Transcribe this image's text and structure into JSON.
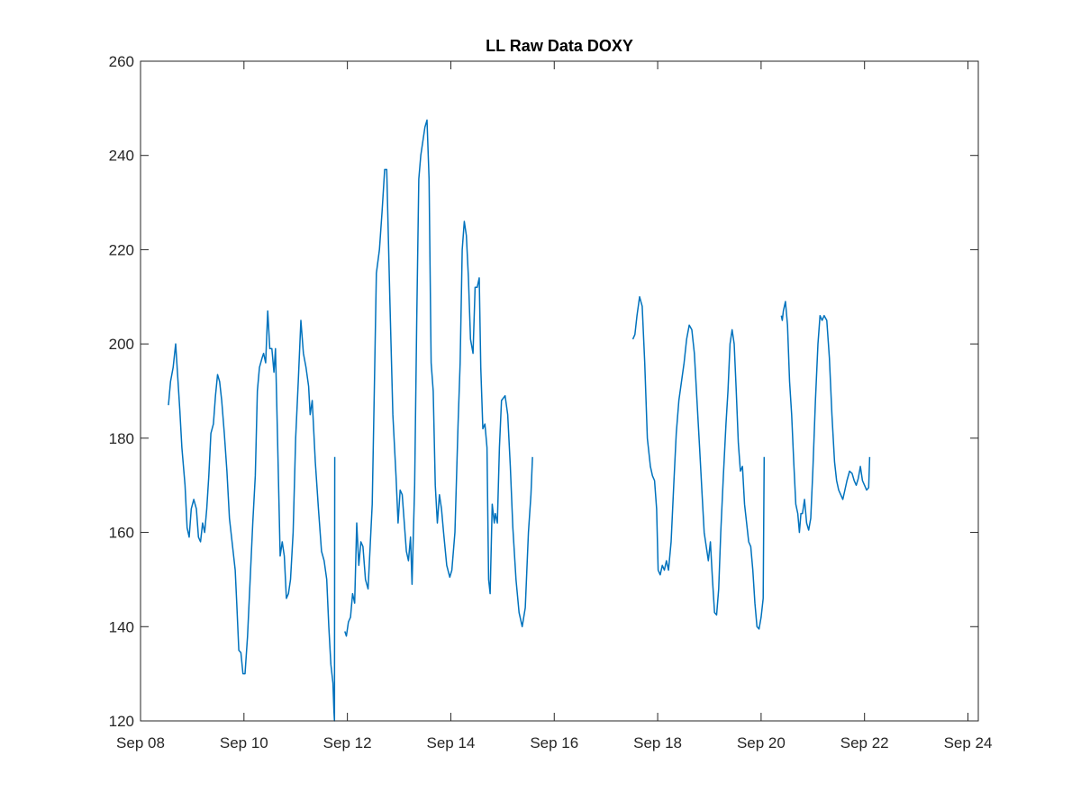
{
  "chart_data": {
    "type": "line",
    "title": "LL Raw Data DOXY",
    "xlabel": "",
    "ylabel": "",
    "x_unit": "days since Sep 08",
    "xlim": [
      0,
      16.2
    ],
    "ylim": [
      120,
      260
    ],
    "x_ticks": [
      {
        "value": 0,
        "label": "Sep 08"
      },
      {
        "value": 2,
        "label": "Sep 10"
      },
      {
        "value": 4,
        "label": "Sep 12"
      },
      {
        "value": 6,
        "label": "Sep 14"
      },
      {
        "value": 8,
        "label": "Sep 16"
      },
      {
        "value": 10,
        "label": "Sep 18"
      },
      {
        "value": 12,
        "label": "Sep 20"
      },
      {
        "value": 14,
        "label": "Sep 22"
      },
      {
        "value": 16,
        "label": "Sep 24"
      }
    ],
    "y_ticks": [
      {
        "value": 120,
        "label": "120"
      },
      {
        "value": 140,
        "label": "140"
      },
      {
        "value": 160,
        "label": "160"
      },
      {
        "value": 180,
        "label": "180"
      },
      {
        "value": 200,
        "label": "200"
      },
      {
        "value": 220,
        "label": "220"
      },
      {
        "value": 240,
        "label": "240"
      },
      {
        "value": 260,
        "label": "260"
      }
    ],
    "grid": false,
    "colors": {
      "line": "#0072BD",
      "axis": "#262626",
      "title": "#000000"
    },
    "series": [
      {
        "name": "DOXY",
        "segments": [
          [
            [
              0.54,
              187
            ],
            [
              0.58,
              192
            ],
            [
              0.63,
              195
            ],
            [
              0.68,
              200
            ],
            [
              0.72,
              193
            ],
            [
              0.76,
              186
            ],
            [
              0.8,
              178
            ],
            [
              0.86,
              170
            ],
            [
              0.9,
              161
            ],
            [
              0.94,
              159
            ],
            [
              0.98,
              165
            ],
            [
              1.03,
              167
            ],
            [
              1.08,
              165
            ],
            [
              1.12,
              159
            ],
            [
              1.16,
              158
            ],
            [
              1.2,
              162
            ],
            [
              1.24,
              160
            ],
            [
              1.28,
              165
            ],
            [
              1.32,
              172
            ],
            [
              1.36,
              181
            ],
            [
              1.41,
              183
            ],
            [
              1.45,
              189
            ],
            [
              1.49,
              193.5
            ],
            [
              1.53,
              192
            ],
            [
              1.57,
              188
            ],
            [
              1.62,
              181
            ],
            [
              1.67,
              173
            ],
            [
              1.72,
              163
            ],
            [
              1.78,
              157
            ],
            [
              1.83,
              152
            ],
            [
              1.86,
              145
            ],
            [
              1.9,
              135
            ],
            [
              1.94,
              134.5
            ],
            [
              1.98,
              130
            ],
            [
              2.02,
              130
            ],
            [
              2.07,
              138
            ],
            [
              2.12,
              150
            ],
            [
              2.17,
              162
            ],
            [
              2.22,
              172
            ],
            [
              2.26,
              190
            ],
            [
              2.3,
              195
            ],
            [
              2.35,
              197
            ],
            [
              2.38,
              198
            ],
            [
              2.42,
              196
            ],
            [
              2.46,
              207
            ],
            [
              2.5,
              199
            ],
            [
              2.54,
              199
            ],
            [
              2.58,
              194
            ],
            [
              2.61,
              199
            ],
            [
              2.65,
              180
            ],
            [
              2.7,
              155
            ],
            [
              2.74,
              158
            ],
            [
              2.78,
              155
            ],
            [
              2.82,
              146
            ],
            [
              2.86,
              147
            ],
            [
              2.9,
              150
            ],
            [
              2.95,
              160
            ],
            [
              3.0,
              180
            ],
            [
              3.05,
              192
            ],
            [
              3.1,
              205
            ],
            [
              3.15,
              198
            ],
            [
              3.2,
              195
            ],
            [
              3.25,
              191
            ],
            [
              3.28,
              185
            ],
            [
              3.32,
              188
            ],
            [
              3.38,
              175
            ],
            [
              3.44,
              165
            ],
            [
              3.5,
              156
            ],
            [
              3.55,
              154
            ],
            [
              3.6,
              150
            ],
            [
              3.64,
              140
            ],
            [
              3.68,
              132
            ],
            [
              3.72,
              128
            ],
            [
              3.74,
              122
            ],
            [
              3.75,
              120
            ],
            [
              3.755,
              176
            ]
          ],
          [
            [
              3.95,
              139
            ],
            [
              3.98,
              138
            ],
            [
              4.02,
              141
            ],
            [
              4.06,
              142
            ],
            [
              4.1,
              147
            ],
            [
              4.14,
              145
            ],
            [
              4.18,
              162
            ],
            [
              4.22,
              153
            ],
            [
              4.26,
              158
            ],
            [
              4.3,
              157
            ],
            [
              4.35,
              150
            ],
            [
              4.4,
              148
            ],
            [
              4.44,
              157
            ],
            [
              4.48,
              166
            ],
            [
              4.52,
              190
            ],
            [
              4.56,
              215
            ],
            [
              4.62,
              220
            ],
            [
              4.67,
              228
            ],
            [
              4.72,
              237
            ],
            [
              4.76,
              237
            ],
            [
              4.82,
              210
            ],
            [
              4.88,
              185
            ],
            [
              4.94,
              172
            ],
            [
              4.98,
              162
            ],
            [
              5.02,
              169
            ],
            [
              5.06,
              168
            ],
            [
              5.1,
              162
            ],
            [
              5.14,
              156
            ],
            [
              5.18,
              154
            ],
            [
              5.22,
              159
            ],
            [
              5.25,
              149
            ],
            [
              5.3,
              170
            ],
            [
              5.34,
              205
            ],
            [
              5.38,
              235
            ],
            [
              5.42,
              240
            ],
            [
              5.46,
              243
            ],
            [
              5.5,
              246
            ],
            [
              5.54,
              247.5
            ],
            [
              5.58,
              235
            ],
            [
              5.62,
              196
            ],
            [
              5.66,
              190
            ],
            [
              5.7,
              170
            ],
            [
              5.74,
              162
            ],
            [
              5.78,
              168
            ],
            [
              5.82,
              165
            ],
            [
              5.86,
              160
            ],
            [
              5.92,
              153
            ],
            [
              5.98,
              150.5
            ],
            [
              6.02,
              152
            ],
            [
              6.08,
              160
            ],
            [
              6.14,
              183
            ],
            [
              6.18,
              196
            ],
            [
              6.22,
              220
            ],
            [
              6.26,
              226
            ],
            [
              6.3,
              223
            ],
            [
              6.34,
              214
            ],
            [
              6.38,
              201
            ],
            [
              6.43,
              198
            ],
            [
              6.47,
              212
            ],
            [
              6.51,
              212
            ],
            [
              6.55,
              214
            ],
            [
              6.58,
              195
            ],
            [
              6.62,
              182
            ],
            [
              6.66,
              183
            ],
            [
              6.7,
              178
            ],
            [
              6.73,
              150
            ],
            [
              6.76,
              147
            ],
            [
              6.8,
              166
            ],
            [
              6.84,
              162
            ],
            [
              6.86,
              164
            ],
            [
              6.9,
              162
            ],
            [
              6.94,
              178
            ],
            [
              6.98,
              188
            ],
            [
              7.05,
              189
            ],
            [
              7.1,
              185
            ],
            [
              7.15,
              174
            ],
            [
              7.2,
              161
            ],
            [
              7.26,
              150
            ],
            [
              7.32,
              143
            ],
            [
              7.38,
              140
            ],
            [
              7.44,
              144
            ],
            [
              7.5,
              160
            ],
            [
              7.55,
              168
            ],
            [
              7.58,
              176
            ]
          ],
          [
            [
              9.52,
              201
            ],
            [
              9.56,
              202
            ],
            [
              9.6,
              206
            ],
            [
              9.65,
              210
            ],
            [
              9.7,
              208
            ],
            [
              9.75,
              196
            ],
            [
              9.8,
              180
            ],
            [
              9.86,
              174
            ],
            [
              9.9,
              172
            ],
            [
              9.94,
              171
            ],
            [
              9.98,
              165
            ],
            [
              10.01,
              152
            ],
            [
              10.05,
              151
            ],
            [
              10.09,
              153
            ],
            [
              10.13,
              152
            ],
            [
              10.17,
              154
            ],
            [
              10.21,
              152
            ],
            [
              10.26,
              158
            ],
            [
              10.31,
              170
            ],
            [
              10.36,
              181
            ],
            [
              10.41,
              188
            ],
            [
              10.46,
              192
            ],
            [
              10.51,
              196
            ],
            [
              10.56,
              201
            ],
            [
              10.61,
              204
            ],
            [
              10.66,
              203
            ],
            [
              10.71,
              198
            ],
            [
              10.76,
              188
            ],
            [
              10.81,
              178
            ],
            [
              10.86,
              168
            ],
            [
              10.9,
              160
            ],
            [
              10.94,
              157
            ],
            [
              10.98,
              154
            ],
            [
              11.02,
              158
            ],
            [
              11.06,
              150
            ],
            [
              11.1,
              143
            ],
            [
              11.14,
              142.5
            ],
            [
              11.18,
              148
            ],
            [
              11.22,
              160
            ],
            [
              11.27,
              172
            ],
            [
              11.32,
              183
            ],
            [
              11.36,
              190
            ],
            [
              11.4,
              200
            ],
            [
              11.44,
              203
            ],
            [
              11.48,
              200
            ],
            [
              11.52,
              190
            ],
            [
              11.56,
              179
            ],
            [
              11.6,
              173
            ],
            [
              11.64,
              174
            ],
            [
              11.68,
              166
            ],
            [
              11.72,
              162
            ],
            [
              11.76,
              158
            ],
            [
              11.8,
              157
            ],
            [
              11.84,
              152
            ],
            [
              11.88,
              145
            ],
            [
              11.92,
              140
            ],
            [
              11.96,
              139.5
            ],
            [
              12.0,
              142
            ],
            [
              12.04,
              146
            ],
            [
              12.06,
              176
            ]
          ],
          [
            [
              12.39,
              206
            ],
            [
              12.41,
              205
            ],
            [
              12.43,
              207
            ],
            [
              12.47,
              209
            ],
            [
              12.51,
              204
            ],
            [
              12.55,
              192
            ],
            [
              12.59,
              185
            ],
            [
              12.63,
              175
            ],
            [
              12.67,
              166
            ],
            [
              12.71,
              164
            ],
            [
              12.74,
              160
            ],
            [
              12.77,
              164
            ],
            [
              12.8,
              164
            ],
            [
              12.84,
              167
            ],
            [
              12.88,
              162
            ],
            [
              12.92,
              160.5
            ],
            [
              12.96,
              163
            ],
            [
              13.0,
              173
            ],
            [
              13.05,
              188
            ],
            [
              13.1,
              200
            ],
            [
              13.14,
              206
            ],
            [
              13.18,
              205
            ],
            [
              13.22,
              206
            ],
            [
              13.27,
              205
            ],
            [
              13.32,
              197
            ],
            [
              13.37,
              185
            ],
            [
              13.42,
              175
            ],
            [
              13.46,
              171
            ],
            [
              13.5,
              169
            ],
            [
              13.54,
              168
            ],
            [
              13.58,
              167
            ],
            [
              13.62,
              169
            ],
            [
              13.66,
              171
            ],
            [
              13.71,
              173
            ],
            [
              13.76,
              172.5
            ],
            [
              13.8,
              171
            ],
            [
              13.84,
              170
            ],
            [
              13.88,
              171.5
            ],
            [
              13.92,
              174
            ],
            [
              13.96,
              171
            ],
            [
              14.0,
              170
            ],
            [
              14.04,
              169
            ],
            [
              14.08,
              169.5
            ],
            [
              14.1,
              176
            ]
          ]
        ]
      }
    ]
  }
}
